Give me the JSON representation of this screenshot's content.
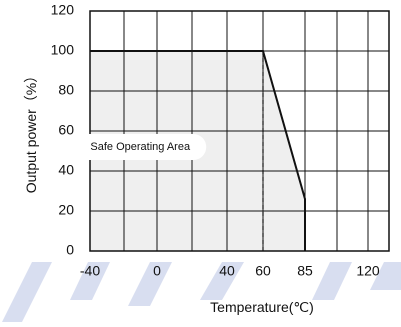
{
  "chart_data": {
    "type": "line",
    "title": "",
    "xlabel": "Temperature(℃)",
    "ylabel": "Output power（%）",
    "x_ticks": [
      -40,
      0,
      40,
      60,
      85,
      120
    ],
    "x_tick_labels": [
      "-40",
      "0",
      "40",
      "60",
      "85",
      "120"
    ],
    "y_ticks": [
      0,
      20,
      40,
      60,
      80,
      100,
      120
    ],
    "y_tick_labels": [
      "0",
      "20",
      "40",
      "60",
      "80",
      "100",
      "120"
    ],
    "xlim": [
      -40,
      145
    ],
    "ylim": [
      0,
      120
    ],
    "grid": true,
    "series": [
      {
        "points": [
          [
            -40,
            100
          ],
          [
            60,
            100
          ],
          [
            85,
            26
          ],
          [
            85,
            0
          ]
        ]
      }
    ],
    "annotations": [
      {
        "text": "Safe Operating Area",
        "x": -10,
        "y": 52
      }
    ],
    "reference_lines": [
      {
        "orientation": "vertical",
        "x": 60,
        "style": "dashed",
        "from_y": 0,
        "to_y": 100
      }
    ],
    "shaded_region": "area under the derating curve",
    "colors": {
      "curve": "#111111",
      "grid": "#111111",
      "shade": "#efefef",
      "background_accent": "#d8def0"
    }
  }
}
